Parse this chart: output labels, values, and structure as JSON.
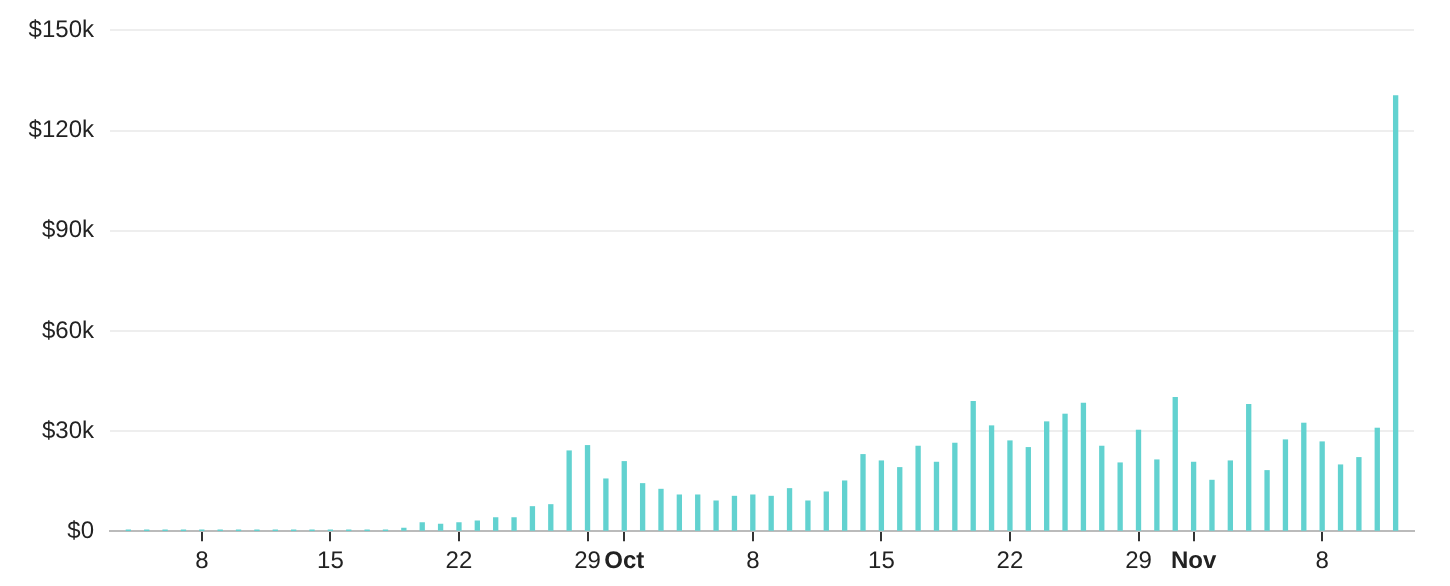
{
  "chart_data": {
    "type": "bar",
    "color": "#62d2d0",
    "x": [
      "--09-04",
      "--09-05",
      "--09-06",
      "--09-07",
      "--09-08",
      "--09-09",
      "--09-10",
      "--09-11",
      "--09-12",
      "--09-13",
      "--09-14",
      "--09-15",
      "--09-16",
      "--09-17",
      "--09-18",
      "--09-19",
      "--09-20",
      "--09-21",
      "--09-22",
      "--09-23",
      "--09-24",
      "--09-25",
      "--09-26",
      "--09-27",
      "--09-28",
      "--09-29",
      "--09-30",
      "--10-01",
      "--10-02",
      "--10-03",
      "--10-04",
      "--10-05",
      "--10-06",
      "--10-07",
      "--10-08",
      "--10-09",
      "--10-10",
      "--10-11",
      "--10-12",
      "--10-13",
      "--10-14",
      "--10-15",
      "--10-16",
      "--10-17",
      "--10-18",
      "--10-19",
      "--10-20",
      "--10-21",
      "--10-22",
      "--10-23",
      "--10-24",
      "--10-25",
      "--10-26",
      "--10-27",
      "--10-28",
      "--10-29",
      "--10-30",
      "--10-31",
      "--11-01",
      "--11-02",
      "--11-03",
      "--11-04",
      "--11-05",
      "--11-06",
      "--11-07",
      "--11-08",
      "--11-09",
      "--11-10",
      "--11-11",
      "--11-12"
    ],
    "values": [
      200,
      200,
      200,
      200,
      200,
      200,
      200,
      200,
      200,
      200,
      200,
      200,
      200,
      200,
      200,
      800,
      2500,
      2000,
      2500,
      3000,
      4000,
      4000,
      7300,
      7900,
      24000,
      25600,
      15600,
      20800,
      14200,
      12500,
      10800,
      10800,
      9000,
      10400,
      10800,
      10400,
      12700,
      9000,
      11700,
      15000,
      22900,
      21000,
      19000,
      25400,
      20600,
      26300,
      38800,
      31500,
      27000,
      25000,
      32700,
      35000,
      38300,
      25400,
      20400,
      30200,
      21300,
      40000,
      20600,
      15200,
      21000,
      37900,
      18100,
      27300,
      32300,
      26700,
      19800,
      22000,
      30800,
      130400
    ],
    "xlim": [
      "--09-03",
      "--11-13"
    ],
    "xticks": [
      {
        "value": "--09-08",
        "label": "8"
      },
      {
        "value": "--09-15",
        "label": "15"
      },
      {
        "value": "--09-22",
        "label": "22"
      },
      {
        "value": "--09-29",
        "label": "29"
      },
      {
        "value": "--10-01",
        "label": "Oct"
      },
      {
        "value": "--10-08",
        "label": "8"
      },
      {
        "value": "--10-15",
        "label": "15"
      },
      {
        "value": "--10-22",
        "label": "22"
      },
      {
        "value": "--10-29",
        "label": "29"
      },
      {
        "value": "--11-01",
        "label": "Nov"
      },
      {
        "value": "--11-08",
        "label": "8"
      }
    ],
    "ylim": [
      0,
      150000
    ],
    "yticks": [
      {
        "value": 0,
        "label": "$0"
      },
      {
        "value": 30000,
        "label": "$30k"
      },
      {
        "value": 60000,
        "label": "$60k"
      },
      {
        "value": 90000,
        "label": "$90k"
      },
      {
        "value": 120000,
        "label": "$120k"
      },
      {
        "value": 150000,
        "label": "$150k"
      }
    ],
    "grid": "y",
    "legend": false
  }
}
